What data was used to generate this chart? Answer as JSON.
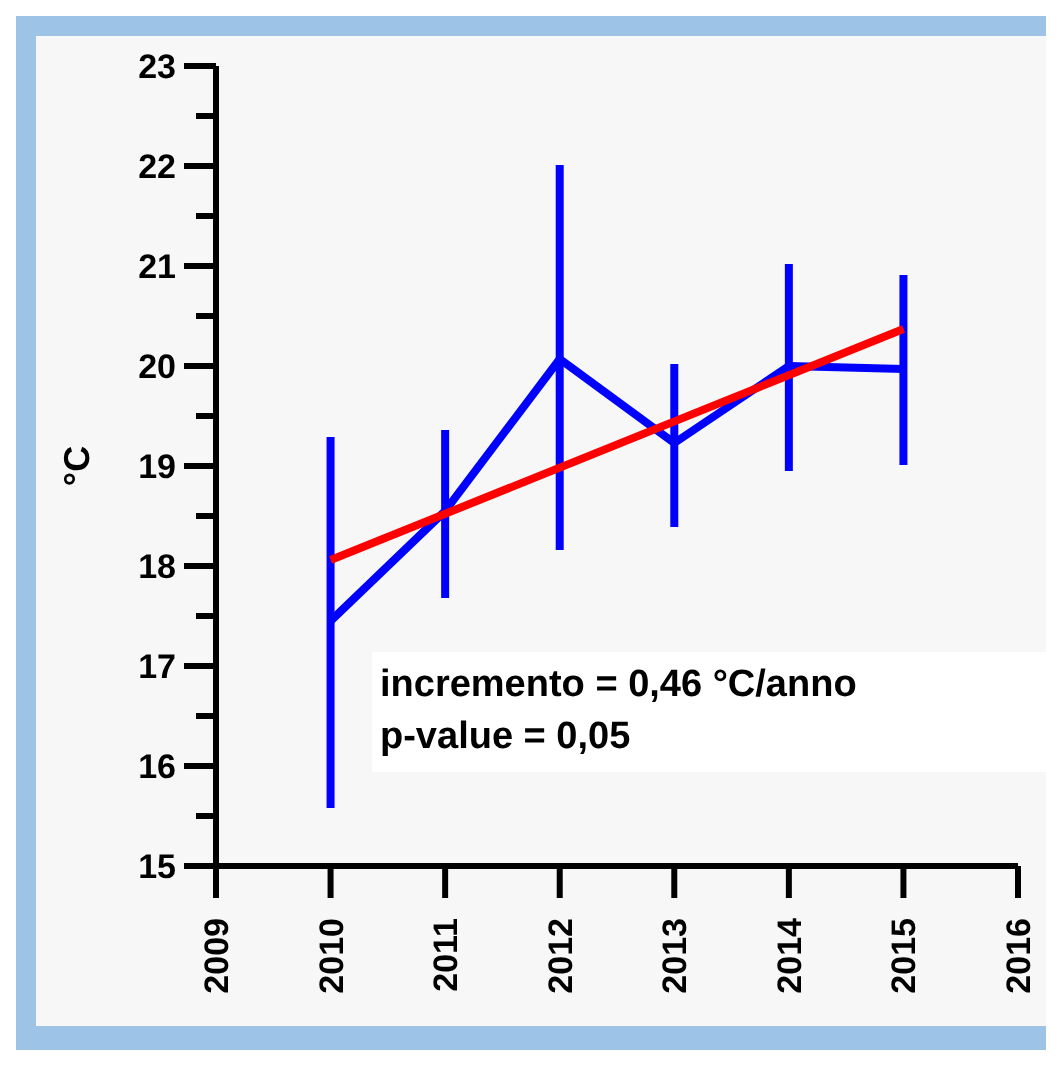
{
  "chart_data": {
    "type": "line",
    "ylabel": "°C",
    "xlim": [
      2009,
      2016
    ],
    "xticks": [
      2009,
      2010,
      2011,
      2012,
      2013,
      2014,
      2015,
      2016
    ],
    "ylim": [
      15,
      23
    ],
    "yticks": [
      15,
      {
        "value": 15.5,
        "label": null
      },
      16,
      {
        "value": 16.5,
        "label": null
      },
      17,
      {
        "value": 17.5,
        "label": null
      },
      18,
      {
        "value": 18.5,
        "label": null
      },
      19,
      {
        "value": 19.5,
        "label": null
      },
      20,
      {
        "value": 20.5,
        "label": null
      },
      21,
      {
        "value": 21.5,
        "label": null
      },
      22,
      {
        "value": 22.5,
        "label": null
      },
      23
    ],
    "marker": "none",
    "line_style": "solid",
    "series": [
      {
        "color": "#0000ff",
        "x": [
          2010,
          2011,
          2012,
          2013,
          2014,
          2015
        ],
        "values": [
          17.45,
          18.55,
          20.07,
          19.23,
          20.0,
          19.97
        ],
        "errors": [
          [
            15.58,
            19.29
          ],
          [
            17.68,
            19.36
          ],
          [
            18.16,
            22.01
          ],
          [
            18.39,
            20.02
          ],
          [
            18.95,
            21.02
          ],
          [
            19.01,
            20.91
          ]
        ]
      },
      {
        "color": "#ff0000",
        "x": [
          2010,
          2015
        ],
        "values": [
          18.06,
          20.37
        ]
      }
    ],
    "annotations": [
      "incremento = 0,46 °C/anno",
      "p-value = 0,05"
    ]
  }
}
